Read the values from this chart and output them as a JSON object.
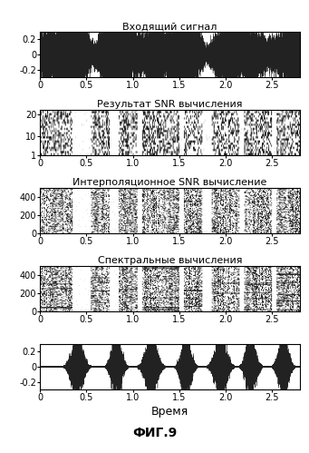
{
  "title1": "Входящий сигнал",
  "title2": "Результат SNR вычисления",
  "title3": "Интерполяционное SNR вычисление",
  "title4": "Спектральные вычисления",
  "xlabel": "Время",
  "fig_caption": "ФИГ.9",
  "xlim": [
    0,
    2.8
  ],
  "xticks": [
    0,
    0.5,
    1.0,
    1.5,
    2.0,
    2.5
  ],
  "plot1_ylim": [
    -0.3,
    0.3
  ],
  "plot1_yticks": [
    -0.2,
    0,
    0.2
  ],
  "plot2_ylim": [
    1,
    22
  ],
  "plot2_yticks": [
    1,
    10,
    20
  ],
  "plot3_ylim": [
    0,
    500
  ],
  "plot3_yticks": [
    0,
    200,
    400
  ],
  "plot4_ylim": [
    0,
    500
  ],
  "plot4_yticks": [
    0,
    200,
    400
  ],
  "plot5_ylim": [
    -0.3,
    0.3
  ],
  "plot5_yticks": [
    -0.2,
    0,
    0.2
  ],
  "background_color": "#ffffff",
  "signal_color": "#222222",
  "seed": 42,
  "duration": 2.8,
  "sample_rate": 8000
}
